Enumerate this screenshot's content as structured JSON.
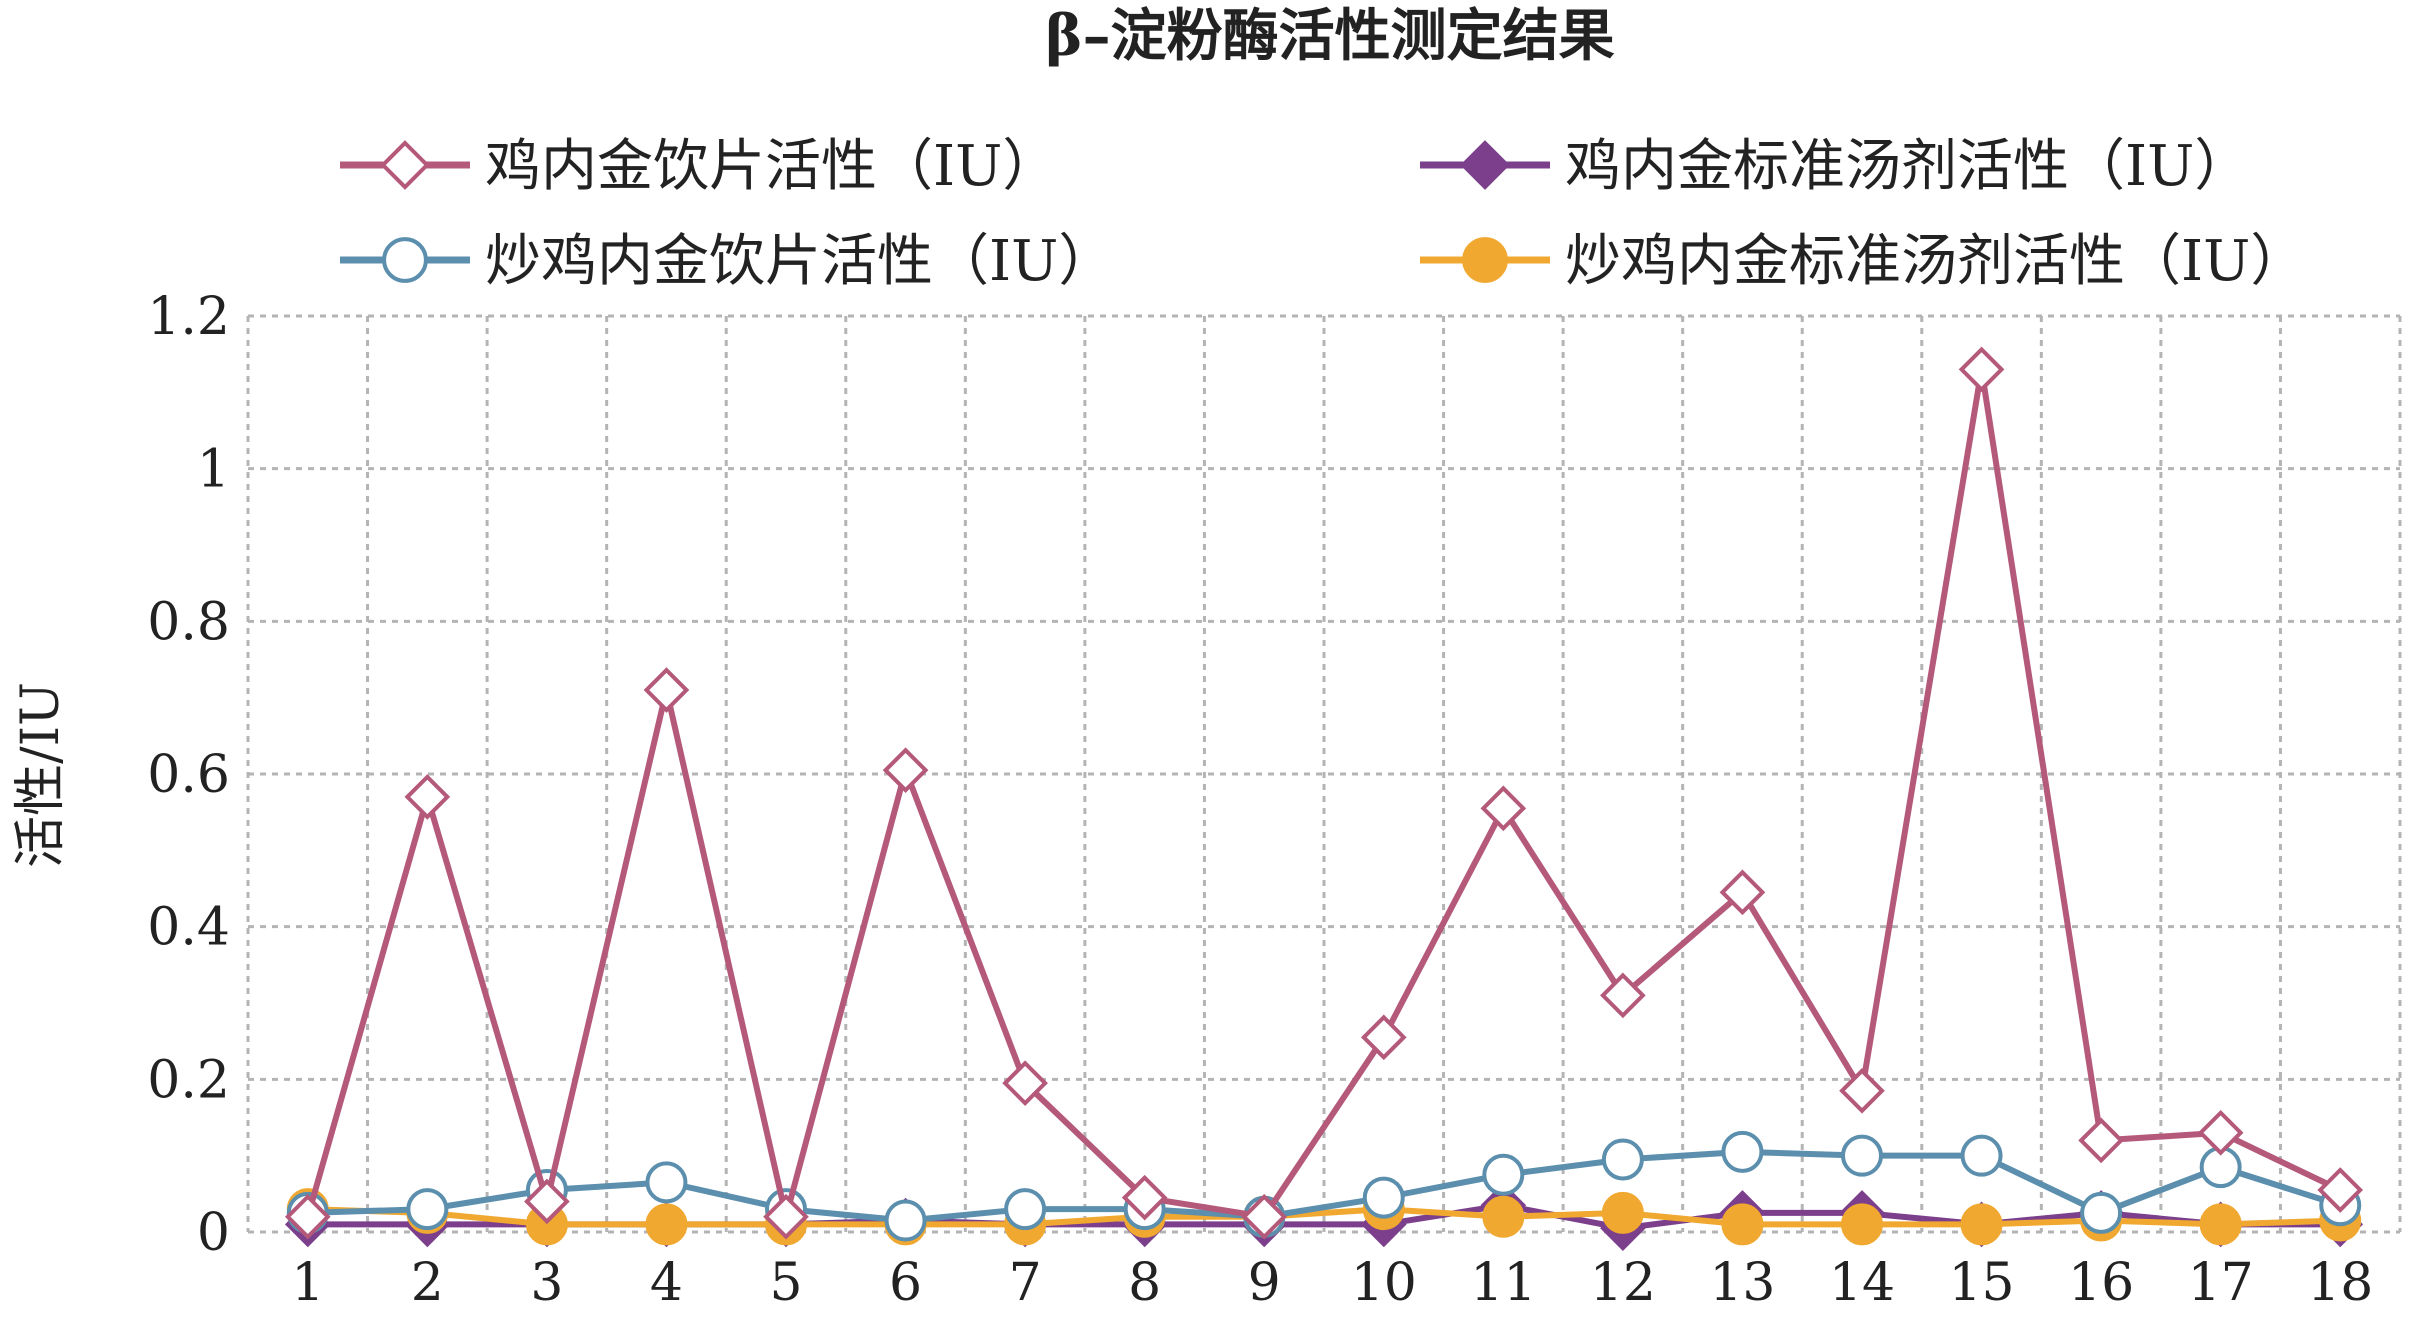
{
  "chart_data": {
    "type": "line",
    "title": "β–淀粉酶活性测定结果",
    "xlabel": "",
    "ylabel": "活性/IU",
    "x": [
      "1",
      "2",
      "3",
      "4",
      "5",
      "6",
      "7",
      "8",
      "9",
      "10",
      "11",
      "12",
      "13",
      "14",
      "15",
      "16",
      "17",
      "18"
    ],
    "ylim": [
      0,
      1.2
    ],
    "yticks": [
      "0",
      "0.2",
      "0.4",
      "0.6",
      "0.8",
      "1",
      "1.2"
    ],
    "grid": true,
    "legend_position": "top",
    "series": [
      {
        "name": "鸡内金饮片活性（IU）",
        "color": "#b5597a",
        "marker": "diamond-open",
        "values": [
          0.02,
          0.57,
          0.04,
          0.71,
          0.02,
          0.605,
          0.195,
          0.045,
          0.02,
          0.255,
          0.555,
          0.31,
          0.445,
          0.185,
          1.13,
          0.12,
          0.13,
          0.055
        ]
      },
      {
        "name": "鸡内金标准汤剂活性（IU）",
        "color": "#7b3f8c",
        "marker": "diamond-filled",
        "values": [
          0.01,
          0.01,
          0.01,
          0.01,
          0.01,
          0.015,
          0.01,
          0.01,
          0.01,
          0.01,
          0.035,
          0.005,
          0.025,
          0.025,
          0.01,
          0.025,
          0.01,
          0.01
        ]
      },
      {
        "name": "炒鸡内金饮片活性（IU）",
        "color": "#5b8fad",
        "marker": "circle-open",
        "values": [
          0.025,
          0.03,
          0.055,
          0.065,
          0.03,
          0.015,
          0.03,
          0.03,
          0.02,
          0.045,
          0.075,
          0.095,
          0.105,
          0.1,
          0.1,
          0.025,
          0.085,
          0.035
        ]
      },
      {
        "name": "炒鸡内金标准汤剂活性（IU）",
        "color": "#f0a830",
        "marker": "circle-filled",
        "values": [
          0.03,
          0.025,
          0.01,
          0.01,
          0.01,
          0.01,
          0.01,
          0.02,
          0.02,
          0.03,
          0.02,
          0.025,
          0.01,
          0.01,
          0.01,
          0.015,
          0.01,
          0.015
        ]
      }
    ]
  }
}
